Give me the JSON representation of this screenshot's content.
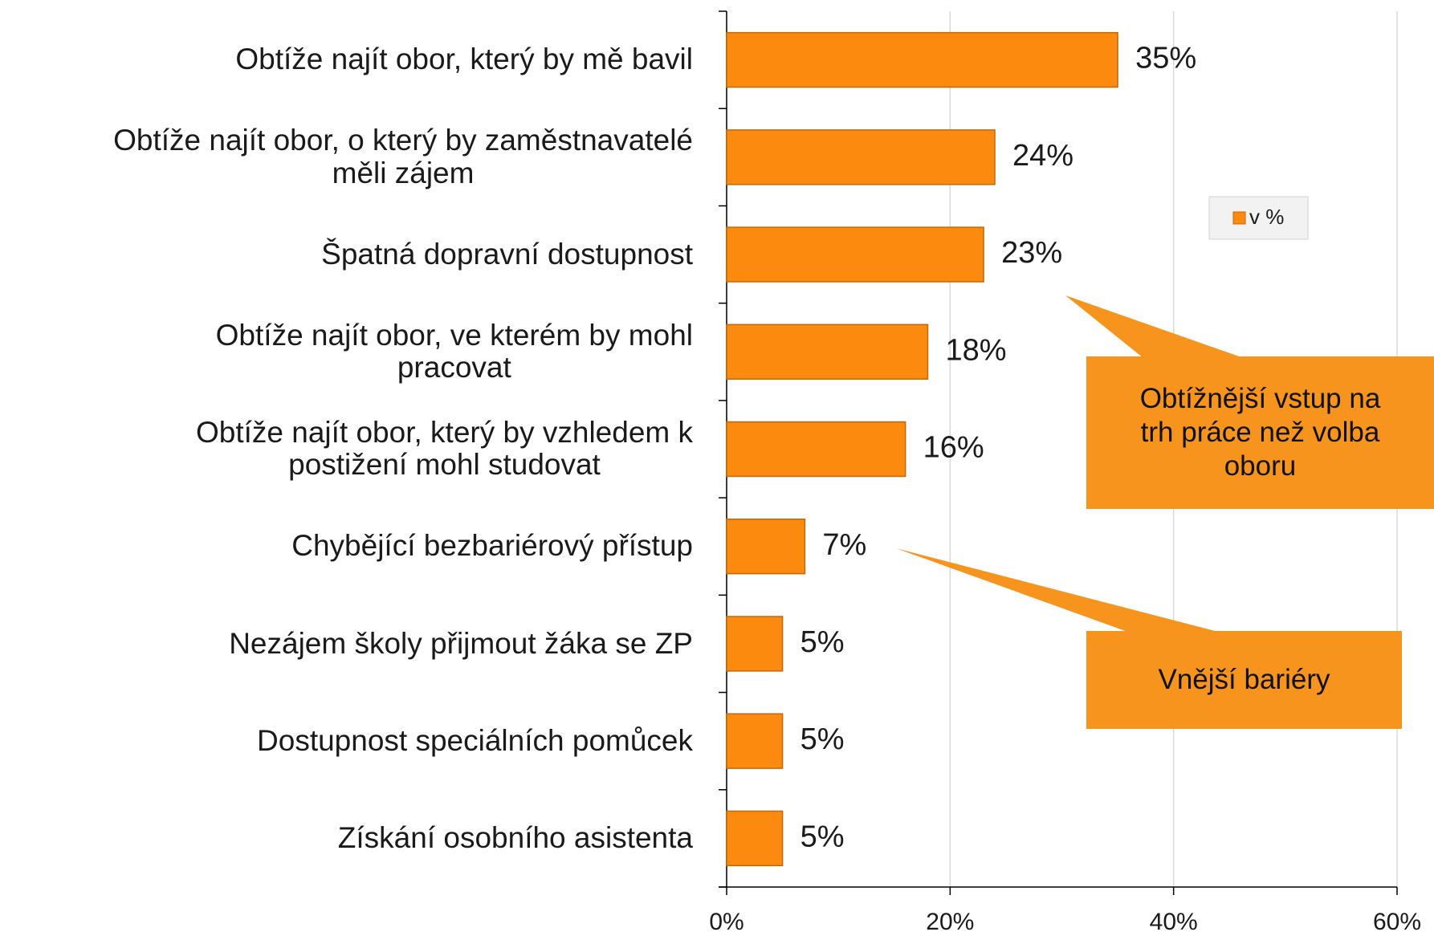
{
  "chart_data": {
    "type": "bar",
    "orientation": "horizontal",
    "categories": [
      "Obtíže najít obor, který by mě bavil",
      "Obtíže najít obor, o který by zaměstnavatelé\nměli zájem",
      "Špatná dopravní dostupnost",
      "Obtíže najít obor, ve kterém by mohl\npracovat",
      "Obtíže najít obor, který by vzhledem k\npostižení mohl studovat",
      "Chybějící bezbariérový přístup",
      "Nezájem školy přijmout žáka se ZP",
      "Dostupnost speciálních pomůcek",
      "Získání osobního asistenta"
    ],
    "series": [
      {
        "name": "v %",
        "color": "#fb8a0e",
        "values": [
          35,
          24,
          23,
          18,
          16,
          7,
          5,
          5,
          5
        ],
        "value_labels": [
          "35%",
          "24%",
          "23%",
          "18%",
          "16%",
          "7%",
          "5%",
          "5%",
          "5%"
        ]
      }
    ],
    "xlim": [
      0,
      60
    ],
    "xticks": [
      {
        "value": 0,
        "label": "0%"
      },
      {
        "value": 20,
        "label": "20%"
      },
      {
        "value": 40,
        "label": "40%"
      },
      {
        "value": 60,
        "label": "60%"
      }
    ],
    "grid": true,
    "legend": "right",
    "annotations": [
      "Obtížnější vstup na\ntrh práce než volba\noboru",
      "Vnější bariéry"
    ]
  }
}
